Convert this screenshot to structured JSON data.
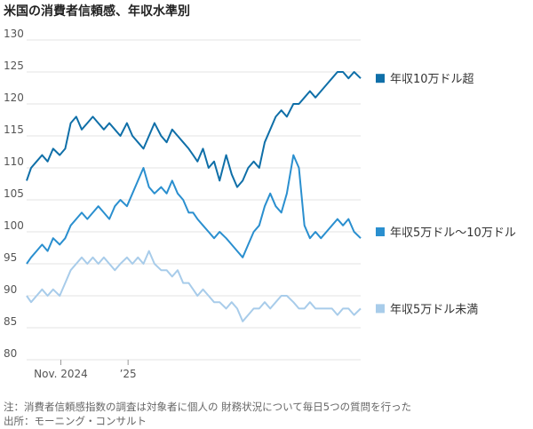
{
  "title": "米国の消費者信頼感、年収水準別",
  "notes": {
    "note": "注：消費者信頼感指数の調査は対象者に個人の 財務状況について毎日5つの質問を行った",
    "source": "出所：モーニング・コンサルト"
  },
  "chart_data": {
    "type": "line",
    "title": "米国の消費者信頼感、年収水準別",
    "ylim": [
      80,
      130
    ],
    "yticks": [
      80,
      85,
      90,
      95,
      100,
      105,
      110,
      115,
      120,
      125,
      130
    ],
    "xticks": [
      {
        "label": "Nov. 2024",
        "date": "2024-11-01"
      },
      {
        "label": "’25",
        "date": "2025-01-01"
      }
    ],
    "x_range": [
      "2024-10-01",
      "2025-07-31"
    ],
    "grid": "horizontal",
    "legend_position": "right",
    "series": [
      {
        "name": "年収10万ドル超",
        "color": "#0f6fa8",
        "points": [
          [
            "2024-10-01",
            108
          ],
          [
            "2024-10-05",
            110
          ],
          [
            "2024-10-10",
            111
          ],
          [
            "2024-10-15",
            112
          ],
          [
            "2024-10-20",
            111
          ],
          [
            "2024-10-25",
            113
          ],
          [
            "2024-10-31",
            112
          ],
          [
            "2024-11-05",
            113
          ],
          [
            "2024-11-10",
            117
          ],
          [
            "2024-11-15",
            118
          ],
          [
            "2024-11-20",
            116
          ],
          [
            "2024-11-25",
            117
          ],
          [
            "2024-11-30",
            118
          ],
          [
            "2024-12-05",
            117
          ],
          [
            "2024-12-10",
            116
          ],
          [
            "2024-12-15",
            117
          ],
          [
            "2024-12-20",
            116
          ],
          [
            "2024-12-25",
            115
          ],
          [
            "2024-12-31",
            117
          ],
          [
            "2025-01-05",
            115
          ],
          [
            "2025-01-10",
            114
          ],
          [
            "2025-01-15",
            113
          ],
          [
            "2025-01-20",
            115
          ],
          [
            "2025-01-25",
            117
          ],
          [
            "2025-01-31",
            115
          ],
          [
            "2025-02-05",
            114
          ],
          [
            "2025-02-10",
            116
          ],
          [
            "2025-02-15",
            115
          ],
          [
            "2025-02-20",
            114
          ],
          [
            "2025-02-25",
            113
          ],
          [
            "2025-03-01",
            112
          ],
          [
            "2025-03-05",
            111
          ],
          [
            "2025-03-10",
            113
          ],
          [
            "2025-03-15",
            110
          ],
          [
            "2025-03-20",
            111
          ],
          [
            "2025-03-25",
            108
          ],
          [
            "2025-03-31",
            112
          ],
          [
            "2025-04-05",
            109
          ],
          [
            "2025-04-10",
            107
          ],
          [
            "2025-04-15",
            108
          ],
          [
            "2025-04-20",
            110
          ],
          [
            "2025-04-25",
            111
          ],
          [
            "2025-04-30",
            110
          ],
          [
            "2025-05-05",
            114
          ],
          [
            "2025-05-10",
            116
          ],
          [
            "2025-05-15",
            118
          ],
          [
            "2025-05-20",
            119
          ],
          [
            "2025-05-25",
            118
          ],
          [
            "2025-05-31",
            120
          ],
          [
            "2025-06-05",
            120
          ],
          [
            "2025-06-10",
            121
          ],
          [
            "2025-06-15",
            122
          ],
          [
            "2025-06-20",
            121
          ],
          [
            "2025-06-25",
            122
          ],
          [
            "2025-06-30",
            123
          ],
          [
            "2025-07-05",
            124
          ],
          [
            "2025-07-10",
            125
          ],
          [
            "2025-07-15",
            125
          ],
          [
            "2025-07-20",
            124
          ],
          [
            "2025-07-25",
            125
          ],
          [
            "2025-07-31",
            124
          ]
        ]
      },
      {
        "name": "年収5万ドル〜10万ドル",
        "color": "#2a8fcf",
        "points": [
          [
            "2024-10-01",
            95
          ],
          [
            "2024-10-05",
            96
          ],
          [
            "2024-10-10",
            97
          ],
          [
            "2024-10-15",
            98
          ],
          [
            "2024-10-20",
            97
          ],
          [
            "2024-10-25",
            99
          ],
          [
            "2024-10-31",
            98
          ],
          [
            "2024-11-05",
            99
          ],
          [
            "2024-11-10",
            101
          ],
          [
            "2024-11-15",
            102
          ],
          [
            "2024-11-20",
            103
          ],
          [
            "2024-11-25",
            102
          ],
          [
            "2024-11-30",
            103
          ],
          [
            "2024-12-05",
            104
          ],
          [
            "2024-12-10",
            103
          ],
          [
            "2024-12-15",
            102
          ],
          [
            "2024-12-20",
            104
          ],
          [
            "2024-12-25",
            105
          ],
          [
            "2024-12-31",
            104
          ],
          [
            "2025-01-05",
            106
          ],
          [
            "2025-01-10",
            108
          ],
          [
            "2025-01-15",
            110
          ],
          [
            "2025-01-20",
            107
          ],
          [
            "2025-01-25",
            106
          ],
          [
            "2025-01-31",
            107
          ],
          [
            "2025-02-05",
            106
          ],
          [
            "2025-02-10",
            108
          ],
          [
            "2025-02-15",
            106
          ],
          [
            "2025-02-20",
            105
          ],
          [
            "2025-02-25",
            103
          ],
          [
            "2025-03-01",
            103
          ],
          [
            "2025-03-05",
            102
          ],
          [
            "2025-03-10",
            101
          ],
          [
            "2025-03-15",
            100
          ],
          [
            "2025-03-20",
            99
          ],
          [
            "2025-03-25",
            100
          ],
          [
            "2025-03-31",
            99
          ],
          [
            "2025-04-05",
            98
          ],
          [
            "2025-04-10",
            97
          ],
          [
            "2025-04-15",
            96
          ],
          [
            "2025-04-20",
            98
          ],
          [
            "2025-04-25",
            100
          ],
          [
            "2025-04-30",
            101
          ],
          [
            "2025-05-05",
            104
          ],
          [
            "2025-05-10",
            106
          ],
          [
            "2025-05-15",
            104
          ],
          [
            "2025-05-20",
            103
          ],
          [
            "2025-05-25",
            106
          ],
          [
            "2025-05-31",
            112
          ],
          [
            "2025-06-05",
            110
          ],
          [
            "2025-06-10",
            101
          ],
          [
            "2025-06-15",
            99
          ],
          [
            "2025-06-20",
            100
          ],
          [
            "2025-06-25",
            99
          ],
          [
            "2025-06-30",
            100
          ],
          [
            "2025-07-05",
            101
          ],
          [
            "2025-07-10",
            102
          ],
          [
            "2025-07-15",
            101
          ],
          [
            "2025-07-20",
            102
          ],
          [
            "2025-07-25",
            100
          ],
          [
            "2025-07-31",
            99
          ]
        ]
      },
      {
        "name": "年収5万ドル未満",
        "color": "#a8ccea",
        "points": [
          [
            "2024-10-01",
            90
          ],
          [
            "2024-10-05",
            89
          ],
          [
            "2024-10-10",
            90
          ],
          [
            "2024-10-15",
            91
          ],
          [
            "2024-10-20",
            90
          ],
          [
            "2024-10-25",
            91
          ],
          [
            "2024-10-31",
            90
          ],
          [
            "2024-11-05",
            92
          ],
          [
            "2024-11-10",
            94
          ],
          [
            "2024-11-15",
            95
          ],
          [
            "2024-11-20",
            96
          ],
          [
            "2024-11-25",
            95
          ],
          [
            "2024-11-30",
            96
          ],
          [
            "2024-12-05",
            95
          ],
          [
            "2024-12-10",
            96
          ],
          [
            "2024-12-15",
            95
          ],
          [
            "2024-12-20",
            94
          ],
          [
            "2024-12-25",
            95
          ],
          [
            "2024-12-31",
            96
          ],
          [
            "2025-01-05",
            95
          ],
          [
            "2025-01-10",
            96
          ],
          [
            "2025-01-15",
            95
          ],
          [
            "2025-01-20",
            97
          ],
          [
            "2025-01-25",
            95
          ],
          [
            "2025-01-31",
            94
          ],
          [
            "2025-02-05",
            94
          ],
          [
            "2025-02-10",
            93
          ],
          [
            "2025-02-15",
            94
          ],
          [
            "2025-02-20",
            92
          ],
          [
            "2025-02-25",
            92
          ],
          [
            "2025-03-01",
            91
          ],
          [
            "2025-03-05",
            90
          ],
          [
            "2025-03-10",
            91
          ],
          [
            "2025-03-15",
            90
          ],
          [
            "2025-03-20",
            89
          ],
          [
            "2025-03-25",
            89
          ],
          [
            "2025-03-31",
            88
          ],
          [
            "2025-04-05",
            89
          ],
          [
            "2025-04-10",
            88
          ],
          [
            "2025-04-15",
            86
          ],
          [
            "2025-04-20",
            87
          ],
          [
            "2025-04-25",
            88
          ],
          [
            "2025-04-30",
            88
          ],
          [
            "2025-05-05",
            89
          ],
          [
            "2025-05-10",
            88
          ],
          [
            "2025-05-15",
            89
          ],
          [
            "2025-05-20",
            90
          ],
          [
            "2025-05-25",
            90
          ],
          [
            "2025-05-31",
            89
          ],
          [
            "2025-06-05",
            88
          ],
          [
            "2025-06-10",
            88
          ],
          [
            "2025-06-15",
            89
          ],
          [
            "2025-06-20",
            88
          ],
          [
            "2025-06-25",
            88
          ],
          [
            "2025-06-30",
            88
          ],
          [
            "2025-07-05",
            88
          ],
          [
            "2025-07-10",
            87
          ],
          [
            "2025-07-15",
            88
          ],
          [
            "2025-07-20",
            88
          ],
          [
            "2025-07-25",
            87
          ],
          [
            "2025-07-31",
            88
          ]
        ]
      }
    ],
    "legend": [
      {
        "label": "年収10万ドル超",
        "value_anchor": 124
      },
      {
        "label": "年収5万ドル〜10万ドル",
        "value_anchor": 100
      },
      {
        "label": "年収5万ドル未満",
        "value_anchor": 88
      }
    ]
  }
}
